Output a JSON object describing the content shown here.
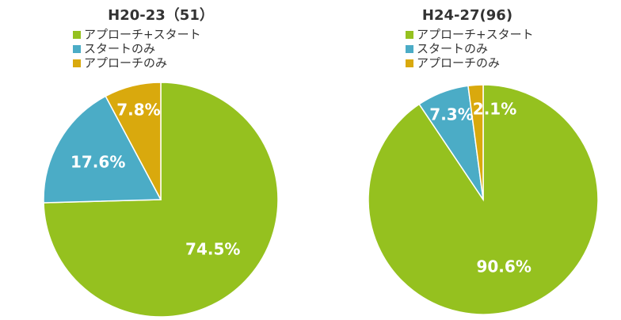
{
  "chart_data": [
    {
      "type": "pie",
      "title": "H20-23（51）",
      "categories": [
        "アプローチ+スタート",
        "スタートのみ",
        "アプローチのみ"
      ],
      "values": [
        74.5,
        17.6,
        7.8
      ],
      "value_labels": [
        "74.5%",
        "17.6%",
        "7.8%"
      ],
      "colors": [
        "#95c11f",
        "#4bacc6",
        "#d9a90d"
      ]
    },
    {
      "type": "pie",
      "title": "H24-27(96)",
      "categories": [
        "アプローチ+スタート",
        "スタートのみ",
        "アプローチのみ"
      ],
      "values": [
        90.6,
        7.3,
        2.1
      ],
      "value_labels": [
        "90.6%",
        "7.3%",
        "2.1%"
      ],
      "colors": [
        "#95c11f",
        "#4bacc6",
        "#d9a90d"
      ]
    }
  ]
}
